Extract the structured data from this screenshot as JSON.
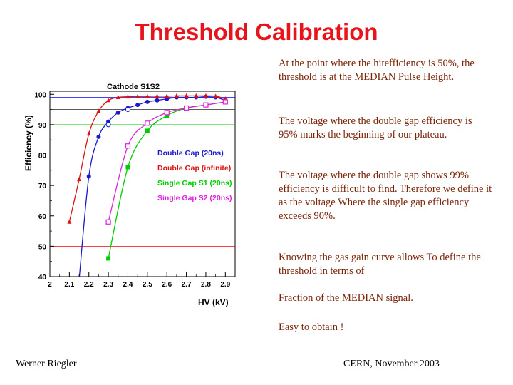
{
  "slide": {
    "title": "Threshold Calibration",
    "notes": [
      "At the point where the hitefficiency is 50%, the threshold is at the MEDIAN Pulse Height.",
      "The voltage where the double gap efficiency is 95% marks the beginning of our plateau.",
      "The voltage where the double gap shows 99% efficiency is difficult to find. Therefore we define it as the voltage Where the single gap efficiency exceeds 90%.",
      "Knowing the gas gain curve allows To define the threshold in terms of",
      "Fraction of the MEDIAN signal.",
      "Easy to obtain !"
    ],
    "footer_left": "Werner Riegler",
    "footer_right": "CERN, November 2003"
  },
  "chart_data": {
    "type": "line",
    "title": "Cathode S1S2",
    "xlabel": "HV (kV)",
    "ylabel": "Efficiency (%)",
    "xlim": [
      2.0,
      2.95
    ],
    "ylim": [
      40,
      101
    ],
    "xticks": [
      "2",
      "2.1",
      "2.2",
      "2.3",
      "2.4",
      "2.5",
      "2.6",
      "2.7",
      "2.8",
      "2.9"
    ],
    "yticks": [
      "40",
      "50",
      "60",
      "70",
      "80",
      "90",
      "100"
    ],
    "reference_lines": [
      {
        "y": 99,
        "color": "#0000ff"
      },
      {
        "y": 95,
        "color": "#444444"
      },
      {
        "y": 90,
        "color": "#00cc00"
      },
      {
        "y": 50,
        "color": "#ff0000"
      }
    ],
    "grid": false,
    "legend_position": "center-right",
    "series": [
      {
        "name": "Double Gap (20ns)",
        "color": "#1a1acc",
        "marker": "circle",
        "x": [
          2.15,
          2.2,
          2.25,
          2.3,
          2.35,
          2.4,
          2.45,
          2.5,
          2.55,
          2.6,
          2.65,
          2.7,
          2.75,
          2.8,
          2.85,
          2.9
        ],
        "y": [
          39,
          73,
          86,
          91,
          94,
          95.5,
          96.5,
          97.5,
          98,
          98.5,
          99,
          99,
          99,
          99.2,
          99,
          98
        ]
      },
      {
        "name": "Double Gap (infinite)",
        "color": "#dd1111",
        "marker": "triangle",
        "x": [
          2.1,
          2.15,
          2.2,
          2.25,
          2.3,
          2.35,
          2.4,
          2.45,
          2.5,
          2.55,
          2.6,
          2.65,
          2.7,
          2.75,
          2.8,
          2.85,
          2.9
        ],
        "y": [
          58,
          72,
          87,
          94.5,
          98,
          99,
          99.2,
          99.3,
          99.3,
          99.4,
          99.4,
          99.5,
          99.5,
          99.5,
          99.5,
          99.4,
          98.5
        ]
      },
      {
        "name": "Single Gap S1 (20ns)",
        "color": "#00cc00",
        "marker": "square",
        "x": [
          2.3,
          2.4,
          2.5,
          2.6,
          2.7,
          2.8,
          2.9
        ],
        "y": [
          46,
          76,
          88,
          93,
          95.5,
          96.5,
          97.5
        ]
      },
      {
        "name": "Single Gap S2 (20ns)",
        "color": "#dd22dd",
        "marker": "open-square",
        "x": [
          2.3,
          2.4,
          2.5,
          2.6,
          2.7,
          2.8,
          2.9
        ],
        "y": [
          58,
          83,
          90.5,
          94,
          95.5,
          96.5,
          97.5
        ]
      }
    ],
    "extra_marks": [
      {
        "series": "Double Gap (20ns)",
        "marker": "open-circle",
        "x": 2.3,
        "y": 90
      },
      {
        "series": "Double Gap (20ns)",
        "marker": "open-circle",
        "x": 2.4,
        "y": 95
      }
    ]
  }
}
